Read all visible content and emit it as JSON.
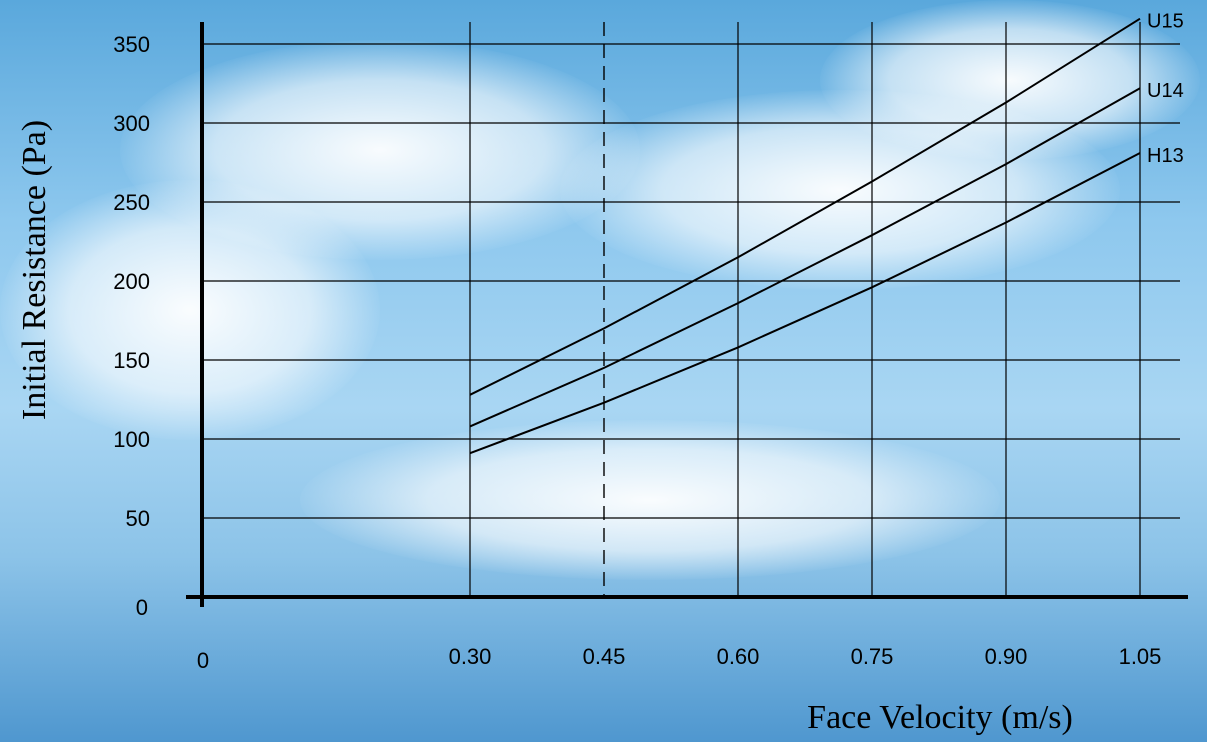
{
  "chart_data": {
    "type": "line",
    "xlabel": "Face Velocity (m/s)",
    "ylabel": "Initial Resistance (Pa)",
    "xlim": [
      0,
      1.05
    ],
    "ylim": [
      0,
      350
    ],
    "x_ticks": [
      "0",
      "0.30",
      "0.45",
      "0.60",
      "0.75",
      "0.90",
      "1.05"
    ],
    "x_tick_values": [
      0,
      0.3,
      0.45,
      0.6,
      0.75,
      0.9,
      1.05
    ],
    "y_ticks": [
      "0",
      "50",
      "100",
      "150",
      "200",
      "250",
      "300",
      "350"
    ],
    "y_tick_values": [
      0,
      50,
      100,
      150,
      200,
      250,
      300,
      350
    ],
    "grid": true,
    "reference_line": {
      "x": 0.45,
      "style": "dashed"
    },
    "series": [
      {
        "name": "U15",
        "x": [
          0.3,
          0.45,
          0.6,
          0.75,
          0.9,
          1.05
        ],
        "y": [
          128,
          170,
          215,
          263,
          313,
          366
        ]
      },
      {
        "name": "U14",
        "x": [
          0.3,
          0.45,
          0.6,
          0.75,
          0.9,
          1.05
        ],
        "y": [
          108,
          145,
          186,
          229,
          274,
          322
        ]
      },
      {
        "name": "H13",
        "x": [
          0.3,
          0.45,
          0.6,
          0.75,
          0.9,
          1.05
        ],
        "y": [
          91,
          123,
          158,
          196,
          237,
          281
        ]
      }
    ]
  }
}
